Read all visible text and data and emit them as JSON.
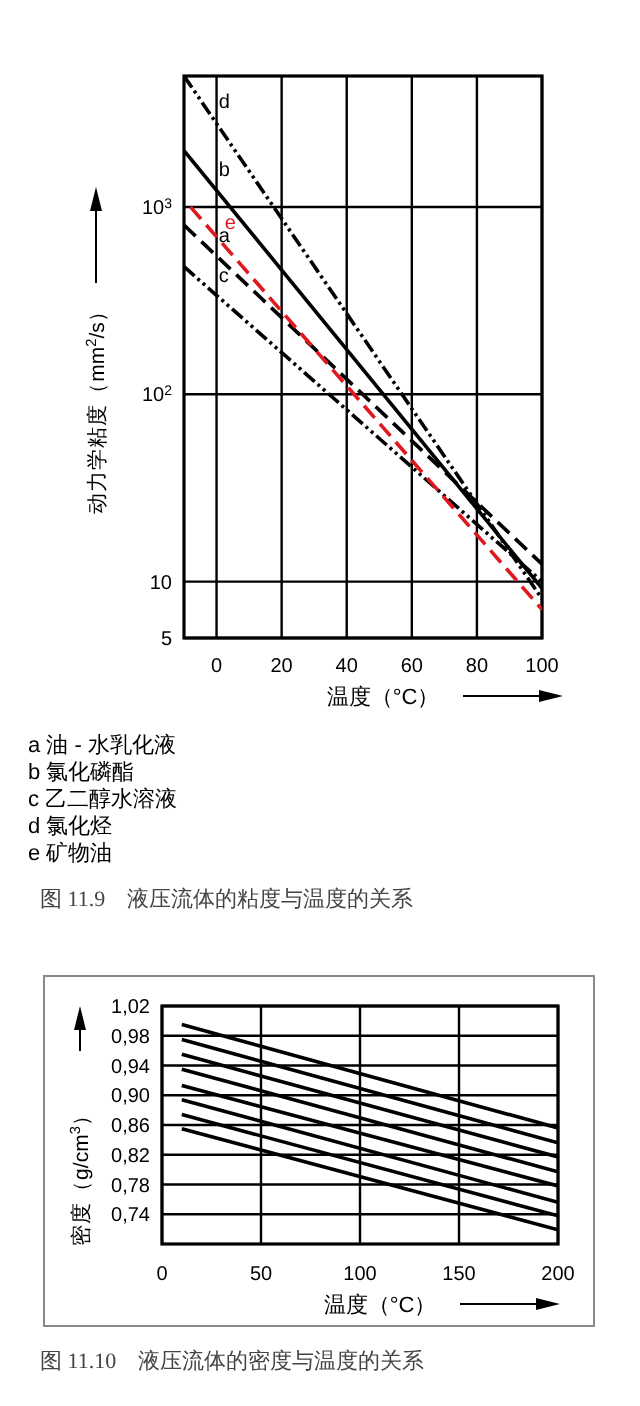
{
  "chart_data": [
    {
      "type": "line",
      "title": "图 11.9　液压流体的粘度与温度的关系",
      "xlabel": "温度（°C）",
      "ylabel": "动力学粘度（mm$^{2}$/s）",
      "log": "y",
      "xlim": [
        -10,
        100
      ],
      "xticks": [
        0,
        20,
        40,
        60,
        80,
        100
      ],
      "ylim": [
        5,
        5000
      ],
      "yticks": [
        5,
        10,
        {
          "value": 100,
          "label": "10$^{2}$"
        },
        {
          "value": 1000,
          "label": "10$^{3}$"
        }
      ],
      "grid": true,
      "x": [
        -10,
        100
      ],
      "series": [
        {
          "name": "a",
          "color": "#000000",
          "line_style": "dashed",
          "values": [
            800,
            12.4
          ]
        },
        {
          "name": "b",
          "color": "#000000",
          "line_style": "solid",
          "values": [
            2000,
            9.2
          ]
        },
        {
          "name": "c",
          "color": "#000000",
          "line_style": "dotted",
          "values": [
            480,
            10
          ]
        },
        {
          "name": "d",
          "color": "#000000",
          "line_style": "dotted",
          "values": [
            5000,
            8.1
          ]
        },
        {
          "name": "e",
          "color": "#e0191f",
          "line_style": "dashed",
          "x": [
            -8,
            100
          ],
          "values": [
            1000,
            7.1
          ]
        }
      ],
      "annotations": [
        "a  油 - 水乳化液",
        "b  氯化磷酯",
        "c  乙二醇水溶液",
        "d  氯化烃",
        "e  矿物油"
      ]
    },
    {
      "type": "line",
      "title": "图 11.10　液压流体的密度与温度的关系",
      "xlabel": "温度（°C）",
      "ylabel": "密度（g/cm$^{3}$）",
      "xlim": [
        0,
        200
      ],
      "xticks": [
        0,
        50,
        100,
        150,
        200
      ],
      "ylim": [
        0.7,
        1.02
      ],
      "yticks": [
        {
          "value": 0.74,
          "label": "0,74"
        },
        {
          "value": 0.78,
          "label": "0,78"
        },
        {
          "value": 0.82,
          "label": "0,82"
        },
        {
          "value": 0.86,
          "label": "0,86"
        },
        {
          "value": 0.9,
          "label": "0,90"
        },
        {
          "value": 0.94,
          "label": "0,94"
        },
        {
          "value": 0.98,
          "label": "0,98"
        },
        {
          "value": 1.02,
          "label": "1,02"
        }
      ],
      "grid": true,
      "x": [
        10,
        200
      ],
      "series": [
        {
          "color": "#000000",
          "values": [
            0.995,
            0.856
          ]
        },
        {
          "color": "#000000",
          "values": [
            0.975,
            0.836
          ]
        },
        {
          "color": "#000000",
          "values": [
            0.955,
            0.817
          ]
        },
        {
          "color": "#000000",
          "values": [
            0.935,
            0.797
          ]
        },
        {
          "color": "#000000",
          "values": [
            0.913,
            0.778
          ]
        },
        {
          "color": "#000000",
          "values": [
            0.894,
            0.756
          ]
        },
        {
          "color": "#000000",
          "values": [
            0.874,
            0.738
          ]
        },
        {
          "color": "#000000",
          "values": [
            0.855,
            0.719
          ]
        }
      ]
    }
  ]
}
